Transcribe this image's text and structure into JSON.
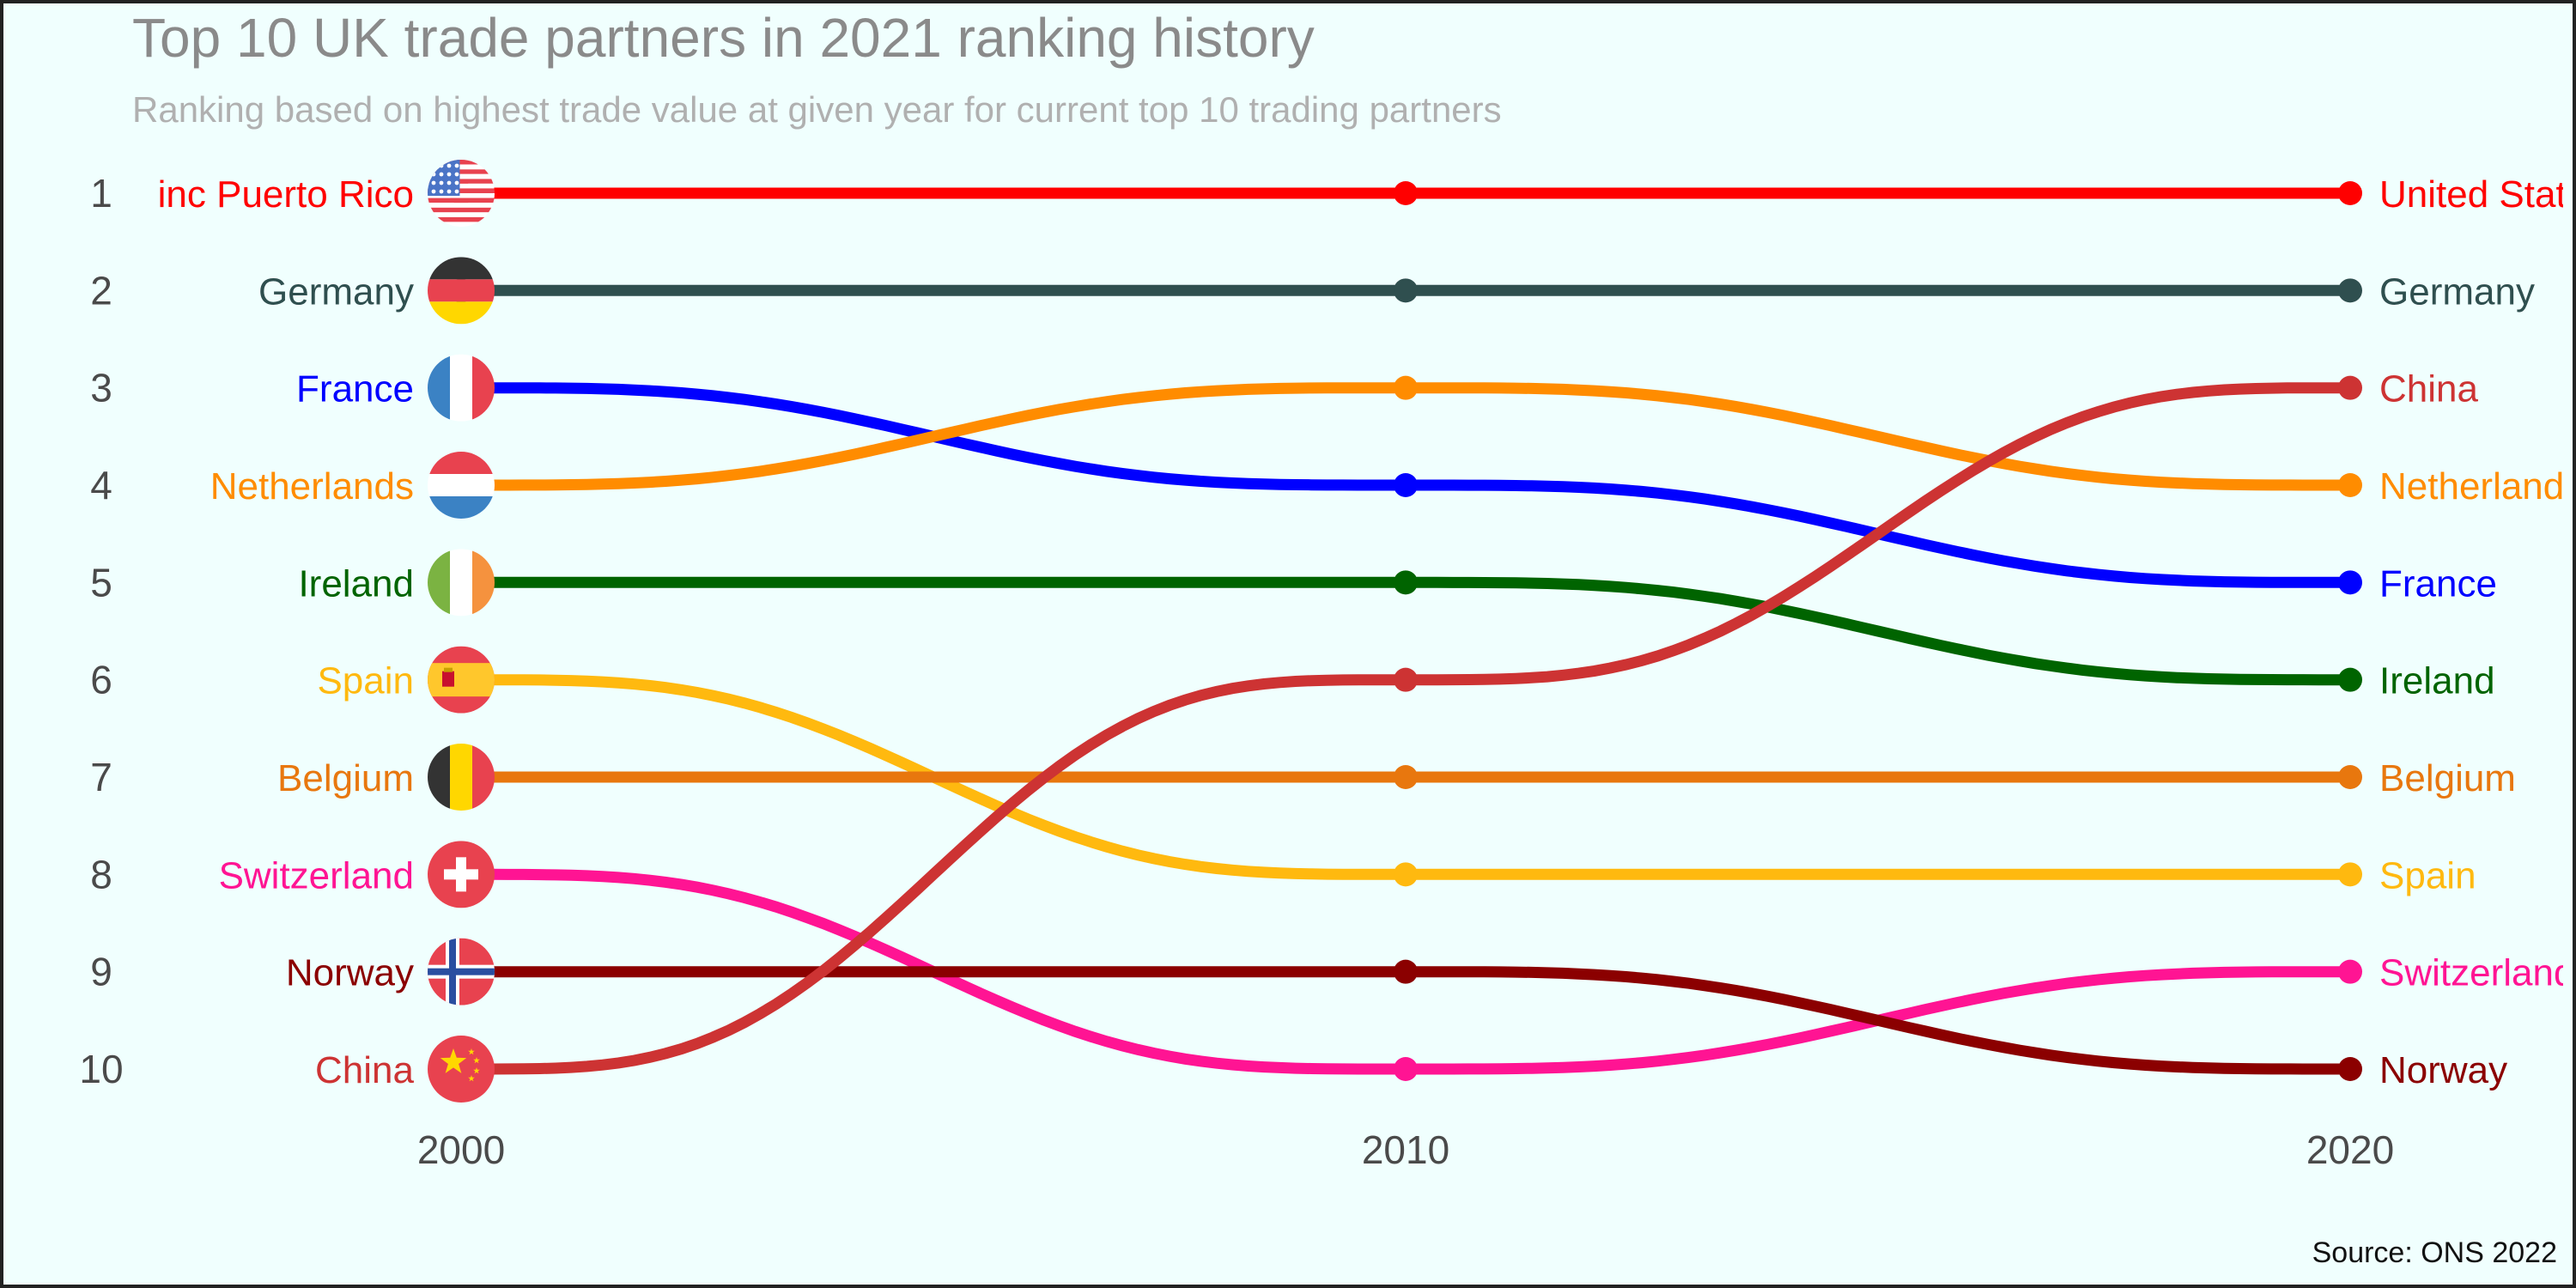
{
  "colors": {
    "background": "#f0fffe",
    "frame": "#222222"
  },
  "chart_data": {
    "type": "line",
    "title": "Top 10 UK trade partners in 2021 ranking history",
    "subtitle": "Ranking based on highest trade value at given year for current top 10 trading partners",
    "caption": "Source: ONS 2022",
    "x": [
      2000,
      2010,
      2020
    ],
    "x_tick_labels": [
      "2000",
      "2010",
      "2020"
    ],
    "y_tick_labels": [
      "1",
      "2",
      "3",
      "4",
      "5",
      "6",
      "7",
      "8",
      "9",
      "10"
    ],
    "ylim": [
      1,
      10
    ],
    "y_reversed": true,
    "grid": false,
    "legend": "none",
    "series": [
      {
        "name": "United States inc Puerto Rico",
        "left_label": "inc Puerto Rico",
        "right_label": "United States",
        "values": [
          1,
          1,
          1
        ],
        "color": "#ff0000",
        "flag": "us-flag-icon"
      },
      {
        "name": "Germany",
        "left_label": "Germany",
        "right_label": "Germany",
        "values": [
          2,
          2,
          2
        ],
        "color": "#2f4f4f",
        "flag": "germany-flag-icon"
      },
      {
        "name": "France",
        "left_label": "France",
        "right_label": "France",
        "values": [
          3,
          4,
          5
        ],
        "color": "#0000ff",
        "flag": "france-flag-icon"
      },
      {
        "name": "Netherlands",
        "left_label": "Netherlands",
        "right_label": "Netherlands",
        "values": [
          4,
          3,
          4
        ],
        "color": "#ff8c00",
        "flag": "netherlands-flag-icon"
      },
      {
        "name": "Ireland",
        "left_label": "Ireland",
        "right_label": "Ireland",
        "values": [
          5,
          5,
          6
        ],
        "color": "#006400",
        "flag": "ireland-flag-icon"
      },
      {
        "name": "Spain",
        "left_label": "Spain",
        "right_label": "Spain",
        "values": [
          6,
          8,
          8
        ],
        "color": "#ffb90f",
        "flag": "spain-flag-icon"
      },
      {
        "name": "Belgium",
        "left_label": "Belgium",
        "right_label": "Belgium",
        "values": [
          7,
          7,
          7
        ],
        "color": "#e8770e",
        "flag": "belgium-flag-icon"
      },
      {
        "name": "Switzerland",
        "left_label": "Switzerland",
        "right_label": "Switzerland",
        "values": [
          8,
          10,
          9
        ],
        "color": "#ff1493",
        "flag": "switzerland-flag-icon"
      },
      {
        "name": "Norway",
        "left_label": "Norway",
        "right_label": "Norway",
        "values": [
          9,
          9,
          10
        ],
        "color": "#8b0000",
        "flag": "norway-flag-icon"
      },
      {
        "name": "China",
        "left_label": "China",
        "right_label": "China",
        "values": [
          10,
          6,
          3
        ],
        "color": "#cd3333",
        "flag": "china-flag-icon"
      }
    ]
  }
}
